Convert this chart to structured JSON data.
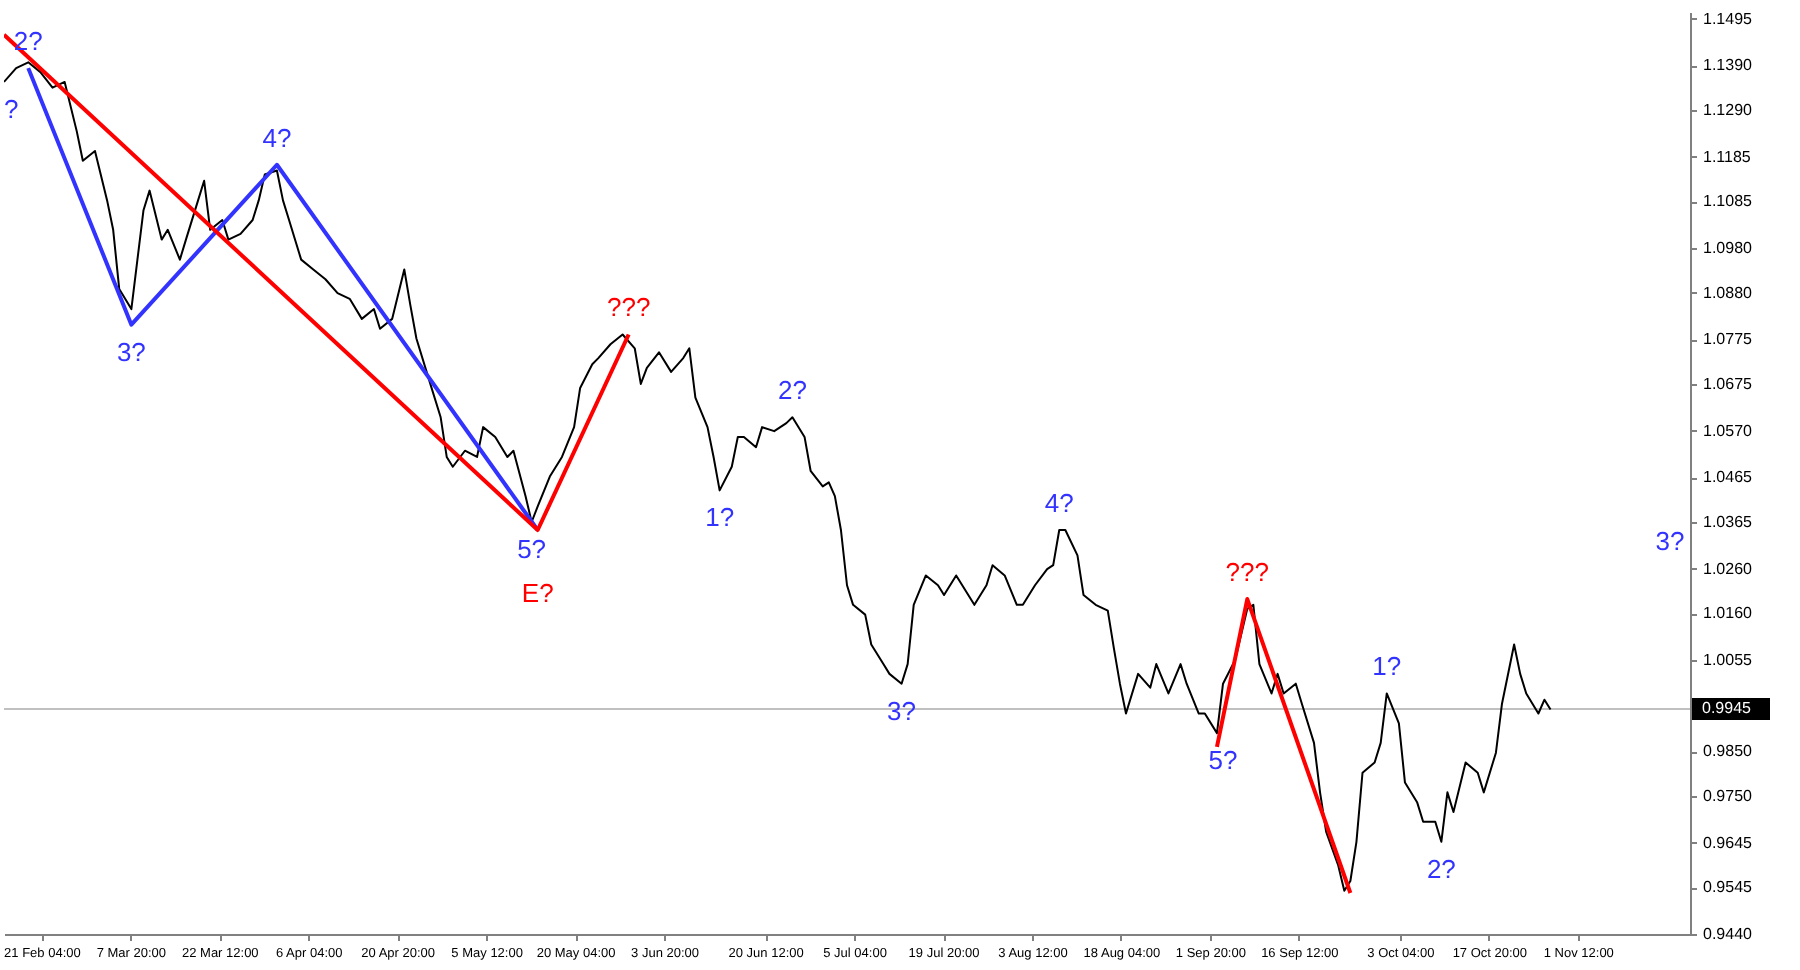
{
  "chart_data": {
    "type": "line",
    "xlim": [
      "--02-15",
      "--11-20"
    ],
    "ylim": [
      0.944,
      1.151
    ],
    "xticks": [
      {
        "value": "--02-21T04:00",
        "label": "21 Feb 04:00"
      },
      {
        "value": "--03-07T20:00",
        "label": "7 Mar 20:00"
      },
      {
        "value": "--03-22T12:00",
        "label": "22 Mar 12:00"
      },
      {
        "value": "--04-06T04:00",
        "label": "6 Apr 04:00"
      },
      {
        "value": "--04-20T20:00",
        "label": "20 Apr 20:00"
      },
      {
        "value": "--05-05T12:00",
        "label": "5 May 12:00"
      },
      {
        "value": "--05-20T04:00",
        "label": "20 May 04:00"
      },
      {
        "value": "--06-03T20:00",
        "label": "3 Jun 20:00"
      },
      {
        "value": "--06-20T12:00",
        "label": "20 Jun 12:00"
      },
      {
        "value": "--07-05T04:00",
        "label": "5 Jul 04:00"
      },
      {
        "value": "--07-19T20:00",
        "label": "19 Jul 20:00"
      },
      {
        "value": "--08-03T12:00",
        "label": "3 Aug 12:00"
      },
      {
        "value": "--08-18T04:00",
        "label": "18 Aug 04:00"
      },
      {
        "value": "--09-01T20:00",
        "label": "1 Sep 20:00"
      },
      {
        "value": "--09-16T12:00",
        "label": "16 Sep 12:00"
      },
      {
        "value": "--10-03T04:00",
        "label": "3 Oct 04:00"
      },
      {
        "value": "--10-17T20:00",
        "label": "17 Oct 20:00"
      },
      {
        "value": "--11-01T12:00",
        "label": "1 Nov 12:00"
      }
    ],
    "yticks": [
      1.1495,
      {
        "value": 1.139,
        "label": "1.1390"
      },
      {
        "value": 1.129,
        "label": "1.1290"
      },
      1.1185,
      1.1085,
      {
        "value": 1.098,
        "label": "1.0980"
      },
      {
        "value": 1.088,
        "label": "1.0880"
      },
      1.0775,
      1.0675,
      {
        "value": 1.057,
        "label": "1.0570"
      },
      1.0465,
      1.0365,
      {
        "value": 1.026,
        "label": "1.0260"
      },
      {
        "value": 1.016,
        "label": "1.0160"
      },
      1.0055,
      {
        "value": 0.985,
        "label": "0.9850"
      },
      {
        "value": 0.975,
        "label": "0.9750"
      },
      0.9645,
      0.9545,
      {
        "value": 0.944,
        "label": "0.9440"
      }
    ],
    "ref_lines": [
      {
        "axis": "y",
        "value": 0.9945,
        "label": "0.9945",
        "color": "#c0c0c0"
      }
    ],
    "series": [
      {
        "color": "#000000",
        "x": [
          "--02-15",
          "--02-17",
          "--02-19",
          "--02-21",
          "--02-23",
          "--02-25",
          "--02-27",
          "--02-28",
          "--03-02",
          "--03-04",
          "--03-05",
          "--03-06",
          "--03-08",
          "--03-09",
          "--03-10",
          "--03-11",
          "--03-13",
          "--03-14",
          "--03-16",
          "--03-17",
          "--03-19",
          "--03-20",
          "--03-21",
          "--03-23",
          "--03-24",
          "--03-26",
          "--03-28",
          "--03-29",
          "--03-30",
          "--04-01",
          "--04-02",
          "--04-03",
          "--04-05",
          "--04-07",
          "--04-09",
          "--04-11",
          "--04-13",
          "--04-15",
          "--04-17",
          "--04-18",
          "--04-20",
          "--04-22",
          "--04-23",
          "--04-24",
          "--04-26",
          "--04-28",
          "--04-29",
          "--04-30",
          "--05-02",
          "--05-04",
          "--05-05",
          "--05-07",
          "--05-09",
          "--05-10",
          "--05-12",
          "--05-13",
          "--05-14",
          "--05-16",
          "--05-18",
          "--05-20",
          "--05-21",
          "--05-23",
          "--05-24",
          "--05-26",
          "--05-28",
          "--05-30",
          "--05-31",
          "--06-01",
          "--06-03",
          "--06-05",
          "--06-07",
          "--06-08",
          "--06-09",
          "--06-11",
          "--06-12",
          "--06-13",
          "--06-15",
          "--06-16",
          "--06-17",
          "--06-19",
          "--06-20",
          "--06-22",
          "--06-24",
          "--06-25",
          "--06-27",
          "--06-28",
          "--06-30",
          "--07-01",
          "--07-02",
          "--07-03",
          "--07-04",
          "--07-05",
          "--07-07",
          "--07-08",
          "--07-10",
          "--07-11",
          "--07-13",
          "--07-14",
          "--07-15",
          "--07-17",
          "--07-19",
          "--07-20",
          "--07-22",
          "--07-23",
          "--07-25",
          "--07-27",
          "--07-28",
          "--07-30",
          "--08-01",
          "--08-02",
          "--08-04",
          "--08-06",
          "--08-07",
          "--08-08",
          "--08-09",
          "--08-11",
          "--08-12",
          "--08-14",
          "--08-16",
          "--08-17",
          "--08-18",
          "--08-19",
          "--08-21",
          "--08-23",
          "--08-24",
          "--08-26",
          "--08-28",
          "--08-29",
          "--08-31",
          "--09-01",
          "--09-03",
          "--09-04",
          "--09-06",
          "--09-08",
          "--09-09",
          "--09-10",
          "--09-12",
          "--09-13",
          "--09-14",
          "--09-16",
          "--09-17",
          "--09-19",
          "--09-20",
          "--09-21",
          "--09-23",
          "--09-24",
          "--09-25",
          "--09-26",
          "--09-27",
          "--09-29",
          "--09-30",
          "--10-01",
          "--10-03",
          "--10-04",
          "--10-06",
          "--10-07",
          "--10-09",
          "--10-10",
          "--10-11",
          "--10-12",
          "--10-14",
          "--10-16",
          "--10-17",
          "--10-19",
          "--10-20",
          "--10-22",
          "--10-23",
          "--10-24",
          "--10-26",
          "--10-27",
          "--10-28"
        ],
        "values": [
          1.1353,
          1.1384,
          1.1397,
          1.1375,
          1.134,
          1.1353,
          1.1242,
          1.1176,
          1.1198,
          1.1087,
          1.1021,
          1.0888,
          1.0843,
          1.0954,
          1.1065,
          1.1109,
          1.0999,
          1.1021,
          1.0954,
          1.0999,
          1.1087,
          1.1131,
          1.1021,
          1.1043,
          1.0999,
          1.1012,
          1.1043,
          1.1087,
          1.1145,
          1.1154,
          1.1087,
          1.1043,
          1.0954,
          1.0932,
          1.091,
          1.0879,
          1.0866,
          1.0821,
          1.0843,
          1.0799,
          1.0821,
          1.0932,
          1.0852,
          1.0777,
          1.0688,
          1.06,
          1.0511,
          1.0489,
          1.0525,
          1.0511,
          1.0578,
          1.0556,
          1.0511,
          1.0525,
          1.0423,
          1.0365,
          1.04,
          1.0467,
          1.0511,
          1.0578,
          1.0666,
          1.0719,
          1.0733,
          1.0764,
          1.0786,
          1.0755,
          1.0675,
          1.0711,
          1.0746,
          1.0702,
          1.0733,
          1.0755,
          1.0644,
          1.0578,
          1.0511,
          1.0436,
          1.0489,
          1.0556,
          1.0556,
          1.0533,
          1.0578,
          1.0569,
          1.0587,
          1.06,
          1.0556,
          1.048,
          1.0445,
          1.0454,
          1.0423,
          1.0347,
          1.0223,
          1.0179,
          1.0157,
          1.009,
          1.0046,
          1.0024,
          1.0002,
          1.0046,
          1.0179,
          1.0245,
          1.0223,
          1.0201,
          1.0245,
          1.0223,
          1.0179,
          1.0223,
          1.0268,
          1.0245,
          1.0179,
          1.0179,
          1.0223,
          1.0259,
          1.0268,
          1.0347,
          1.0347,
          1.029,
          1.0201,
          1.0179,
          1.0166,
          1.0082,
          1.0002,
          0.9935,
          1.0024,
          0.9993,
          1.0046,
          0.998,
          1.0046,
          1.0002,
          0.9935,
          0.9935,
          0.9891,
          1.0002,
          1.0055,
          1.017,
          1.0179,
          1.0046,
          0.998,
          1.0024,
          0.998,
          1.0002,
          0.9957,
          0.9869,
          0.9758,
          0.967,
          0.9594,
          0.9537,
          0.9559,
          0.9647,
          0.9802,
          0.9825,
          0.9869,
          0.998,
          0.9913,
          0.978,
          0.9736,
          0.9692,
          0.9692,
          0.9647,
          0.9758,
          0.9714,
          0.9825,
          0.9802,
          0.9758,
          0.9847,
          0.9957,
          1.009,
          1.0024,
          0.998,
          0.9935,
          0.9966,
          0.9944
        ]
      },
      {
        "color": "#3333ff",
        "x": [
          "--02-19",
          "--03-08",
          "--04-01",
          "--05-14"
        ],
        "values": [
          1.1384,
          1.0808,
          1.1167,
          1.0347
        ]
      },
      {
        "color": "#ff0000",
        "x": [
          "--02-15",
          "--05-14",
          "--05-29"
        ],
        "values": [
          1.1459,
          1.0347,
          1.0786
        ]
      },
      {
        "color": "#ff0000",
        "x": [
          "--09-03",
          "--09-08",
          "--09-25"
        ],
        "values": [
          0.986,
          1.0192,
          0.9532
        ]
      }
    ],
    "annotations": [
      {
        "text": "?",
        "x": "--02-15",
        "y": 1.1353
      },
      {
        "text": "2?",
        "x": "--02-19",
        "y": 1.1384
      },
      {
        "text": "3?",
        "x": "--03-08",
        "y": 1.0808
      },
      {
        "text": "4?",
        "x": "--04-01",
        "y": 1.1167
      },
      {
        "text": "5?",
        "x": "--05-13",
        "y": 1.0365
      },
      {
        "text": "E?",
        "x": "--05-14",
        "y": 1.0347
      },
      {
        "text": "???",
        "x": "--05-29",
        "y": 1.0786
      },
      {
        "text": "1?",
        "x": "--06-13",
        "y": 1.0436
      },
      {
        "text": "2?",
        "x": "--06-25",
        "y": 1.06
      },
      {
        "text": "3?",
        "x": "--07-13",
        "y": 1.0002
      },
      {
        "text": "4?",
        "x": "--08-08",
        "y": 1.0347
      },
      {
        "text": "5?",
        "x": "--09-04",
        "y": 0.9891
      },
      {
        "text": "???",
        "x": "--09-08",
        "y": 1.0192
      },
      {
        "text": "1?",
        "x": "--10-01",
        "y": 0.998
      },
      {
        "text": "2?",
        "x": "--10-10",
        "y": 0.9647
      },
      "3?"
    ]
  }
}
